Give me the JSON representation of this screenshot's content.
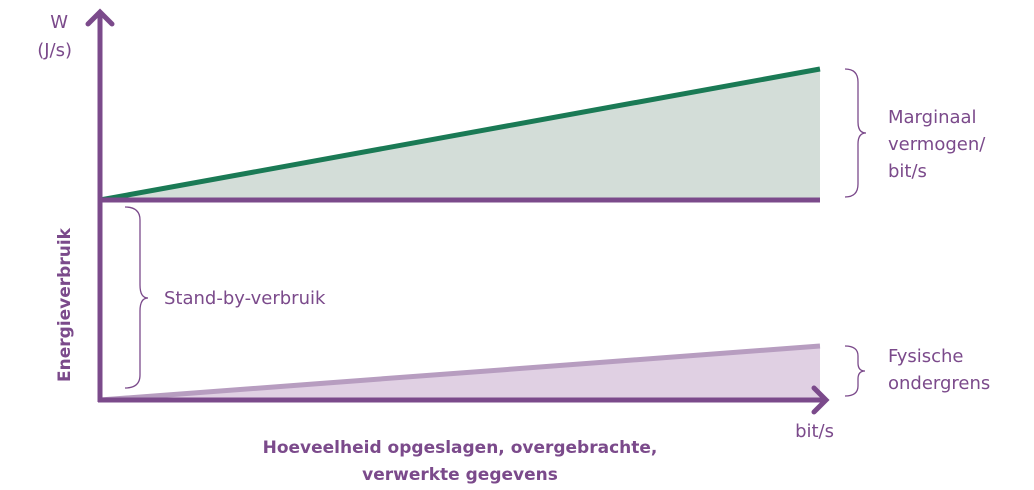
{
  "axes": {
    "y_unit": [
      "W",
      "(J/s)"
    ],
    "y_label": "Energieverbruik",
    "x_unit": "bit/s",
    "x_label": [
      "Hoeveelheid opgeslagen, overgebrachte,",
      "verwerkte gegevens"
    ]
  },
  "annotations": {
    "marginal": [
      "Marginaal",
      "vermogen/",
      "bit/s"
    ],
    "standby": "Stand-by-verbruik",
    "physical": [
      "Fysische",
      "ondergrens"
    ]
  }
}
